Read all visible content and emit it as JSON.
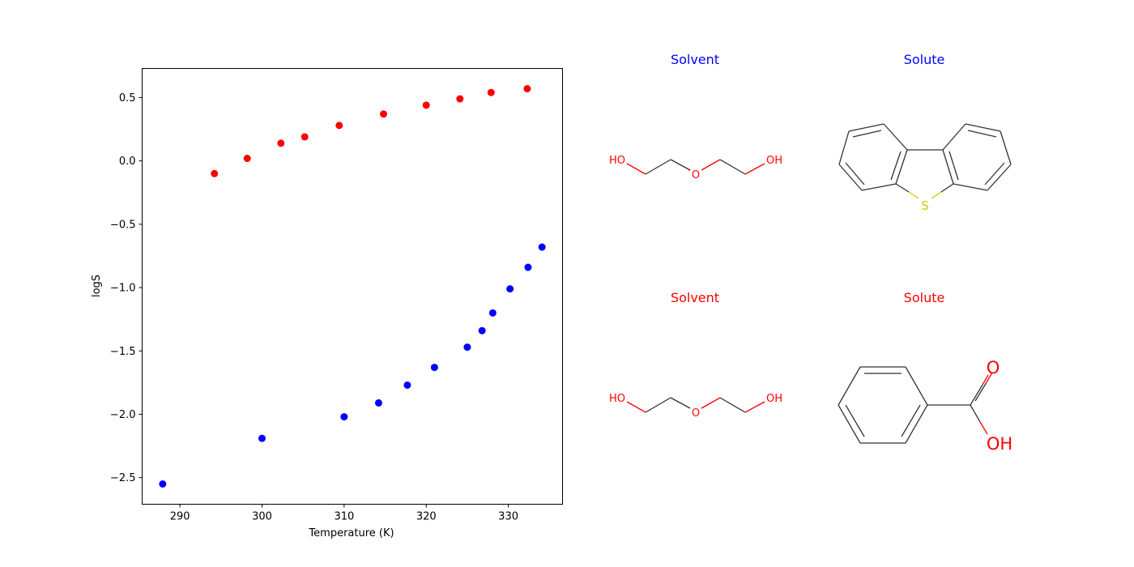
{
  "chart_data": {
    "type": "scatter",
    "xlabel": "Temperature (K)",
    "ylabel": "logS",
    "xlim": [
      285.4,
      336.6
    ],
    "ylim": [
      -2.71,
      0.73
    ],
    "xticks": [
      290,
      300,
      310,
      320,
      330
    ],
    "yticks": [
      0.5,
      0.0,
      -0.5,
      -1.0,
      -1.5,
      -2.0,
      -2.5
    ],
    "xtick_labels": [
      "290",
      "300",
      "310",
      "320",
      "330"
    ],
    "ytick_labels": [
      "0.5",
      "0.0",
      "−0.5",
      "−1.0",
      "−1.5",
      "−2.0",
      "−2.5"
    ],
    "grid": false,
    "series": [
      {
        "color": "#0000ff",
        "x": [
          287.9,
          300.0,
          310.0,
          314.2,
          317.7,
          321.0,
          325.0,
          326.8,
          328.1,
          330.2,
          332.4,
          334.1
        ],
        "y": [
          -2.55,
          -2.19,
          -2.02,
          -1.91,
          -1.77,
          -1.63,
          -1.47,
          -1.34,
          -1.2,
          -1.01,
          -0.84,
          -0.68
        ]
      },
      {
        "color": "#ff0000",
        "x": [
          294.2,
          298.2,
          302.3,
          305.2,
          309.4,
          314.8,
          320.0,
          324.1,
          327.9,
          332.3
        ],
        "y": [
          -0.1,
          0.02,
          0.14,
          0.19,
          0.28,
          0.37,
          0.44,
          0.49,
          0.54,
          0.57
        ]
      }
    ]
  },
  "molecules": {
    "pair1": {
      "color": "#0000ff",
      "solvent_title": "Solvent",
      "solute_title": "Solute",
      "solvent_atoms": {
        "ho": "HO",
        "o": "O",
        "oh": "OH"
      },
      "solute_atoms": {
        "s": "S"
      }
    },
    "pair2": {
      "color": "#ff0000",
      "solvent_title": "Solvent",
      "solute_title": "Solute",
      "solvent_atoms": {
        "ho": "HO",
        "o": "O",
        "oh": "OH"
      },
      "solute_atoms": {
        "o": "O",
        "oh": "OH"
      }
    }
  },
  "colors": {
    "bond": "#333333",
    "oxygen": "#ff0000",
    "sulfur": "#cccc00"
  }
}
